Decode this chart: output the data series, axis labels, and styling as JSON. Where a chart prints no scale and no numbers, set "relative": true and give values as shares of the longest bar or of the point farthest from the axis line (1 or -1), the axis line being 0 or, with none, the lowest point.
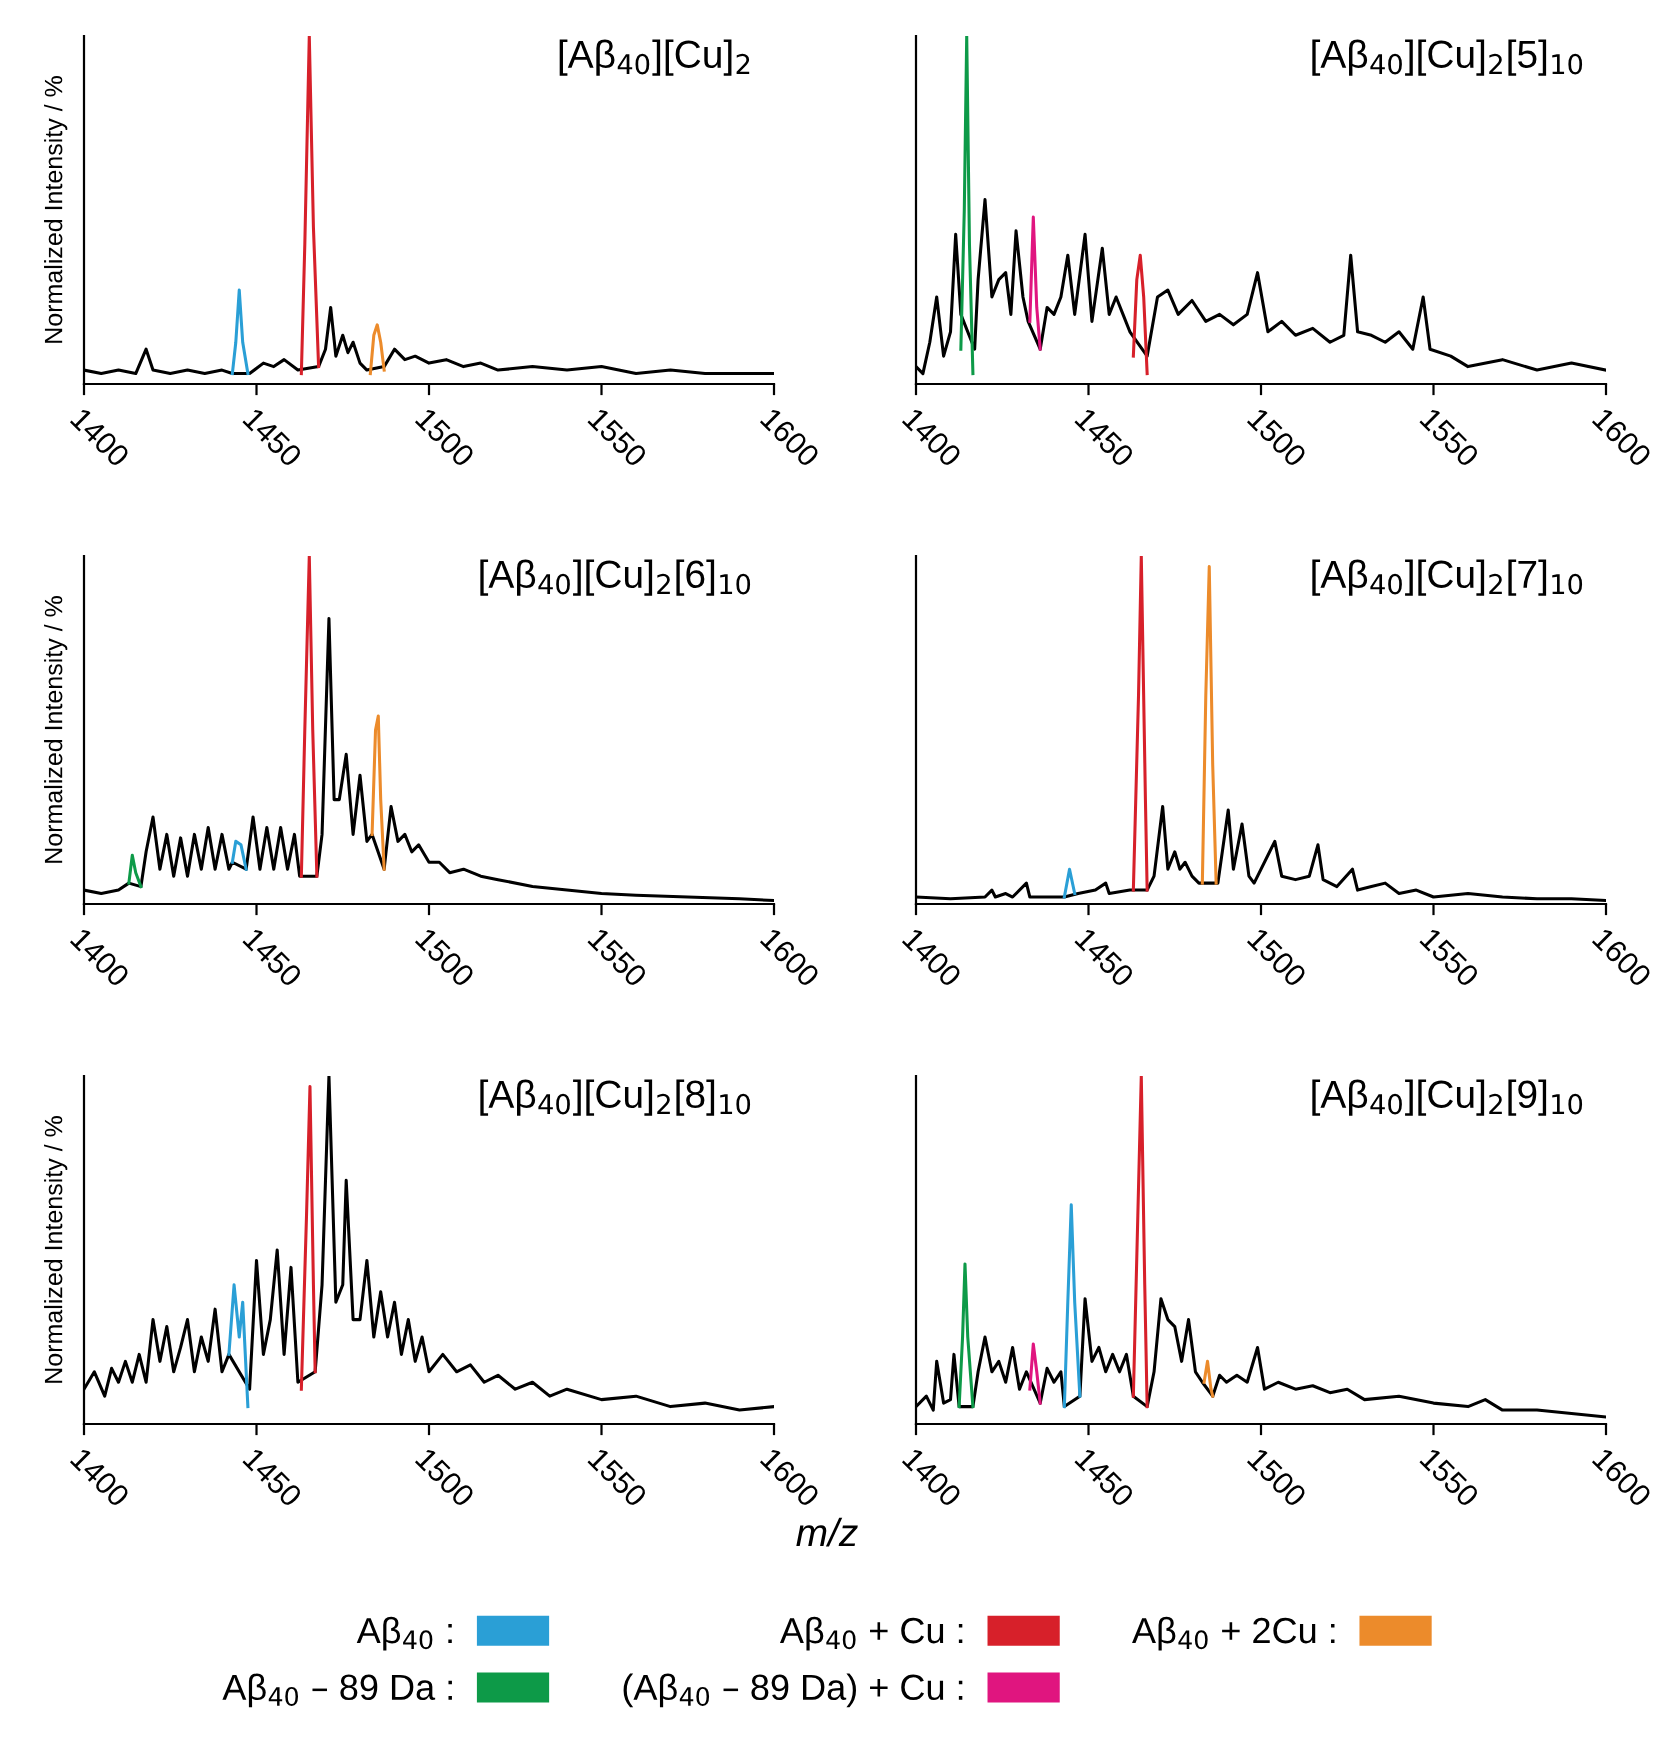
{
  "chart_data": [
    {
      "type": "line",
      "title": "[Aβ$_{40}$][Cu]$_{2}$",
      "ylabel": "Normalized Intensity / %",
      "relative": true,
      "xlim": [
        1400,
        1600
      ],
      "xticks": [
        1400,
        1450,
        1500,
        1550,
        1600
      ],
      "legend": "bottom",
      "series": [
        {
          "color": "#000000",
          "x": [
            1400,
            1405,
            1410,
            1415,
            1418,
            1420,
            1425,
            1430,
            1435,
            1440,
            1443,
            1448,
            1452,
            1455,
            1458,
            1462,
            1468,
            1470,
            1471.5,
            1473,
            1475,
            1476.5,
            1478,
            1480,
            1482,
            1487,
            1490,
            1493,
            1496,
            1500,
            1505,
            1510,
            1515,
            1520,
            1530,
            1540,
            1550,
            1560,
            1570,
            1580,
            1590,
            1600
          ],
          "values": [
            0.04,
            0.03,
            0.04,
            0.03,
            0.1,
            0.04,
            0.03,
            0.04,
            0.03,
            0.04,
            0.03,
            0.03,
            0.06,
            0.05,
            0.07,
            0.04,
            0.05,
            0.1,
            0.22,
            0.08,
            0.14,
            0.09,
            0.12,
            0.06,
            0.04,
            0.05,
            0.1,
            0.07,
            0.08,
            0.06,
            0.07,
            0.05,
            0.06,
            0.04,
            0.05,
            0.04,
            0.05,
            0.03,
            0.04,
            0.03,
            0.03,
            0.03
          ]
        },
        {
          "name": "Aβ$_{40}$ :",
          "color": "#2a9fd6",
          "x": [
            1443,
            1444,
            1445,
            1446,
            1447.5
          ],
          "values": [
            0.03,
            0.12,
            0.27,
            0.12,
            0.03
          ]
        },
        {
          "name": "Aβ$_{40}$ + Cu :",
          "color": "#d7202a",
          "x": [
            1463,
            1464,
            1465.3,
            1466.5,
            1468
          ],
          "values": [
            0.03,
            0.4,
            1.0,
            0.45,
            0.05
          ]
        },
        {
          "name": "Aβ$_{40}$ + 2Cu :",
          "color": "#ec8b2b",
          "x": [
            1483,
            1484,
            1485,
            1486,
            1487
          ],
          "values": [
            0.03,
            0.14,
            0.17,
            0.12,
            0.04
          ]
        }
      ]
    },
    {
      "type": "line",
      "title": "[Aβ$_{40}$][Cu]$_{2}$[5]$_{10}$",
      "relative": true,
      "xlim": [
        1400,
        1600
      ],
      "xticks": [
        1400,
        1450,
        1500,
        1550,
        1600
      ],
      "legend": "bottom",
      "series": [
        {
          "color": "#000000",
          "x": [
            1400,
            1402,
            1404,
            1406,
            1408,
            1410,
            1411.5,
            1413,
            1417,
            1418,
            1420,
            1422,
            1424,
            1426,
            1427.5,
            1429,
            1431,
            1432.5,
            1436,
            1438,
            1440,
            1442,
            1444,
            1446,
            1449,
            1451,
            1454,
            1456,
            1458,
            1460,
            1462,
            1467,
            1470,
            1473,
            1476,
            1480,
            1484,
            1488,
            1492,
            1496,
            1499,
            1502,
            1506,
            1510,
            1515,
            1520,
            1524,
            1526,
            1528,
            1532,
            1536,
            1540,
            1544,
            1547,
            1549,
            1555,
            1560,
            1570,
            1580,
            1590,
            1600
          ],
          "values": [
            0.05,
            0.03,
            0.12,
            0.25,
            0.08,
            0.15,
            0.43,
            0.2,
            0.1,
            0.3,
            0.53,
            0.25,
            0.3,
            0.32,
            0.2,
            0.44,
            0.25,
            0.18,
            0.1,
            0.22,
            0.2,
            0.25,
            0.37,
            0.2,
            0.43,
            0.18,
            0.39,
            0.2,
            0.25,
            0.2,
            0.15,
            0.08,
            0.25,
            0.27,
            0.2,
            0.24,
            0.18,
            0.2,
            0.17,
            0.2,
            0.32,
            0.15,
            0.18,
            0.14,
            0.16,
            0.12,
            0.14,
            0.37,
            0.15,
            0.14,
            0.12,
            0.15,
            0.1,
            0.25,
            0.1,
            0.08,
            0.05,
            0.07,
            0.04,
            0.06,
            0.04
          ]
        },
        {
          "name": "Aβ$_{40}$ – 89 Da :",
          "color": "#0d9a48",
          "x": [
            1413,
            1414,
            1414.7,
            1415.5,
            1416.5
          ],
          "values": [
            0.1,
            0.5,
            1.0,
            0.4,
            0.03
          ]
        },
        {
          "name": "(Aβ$_{40}$ – 89 Da) + Cu :",
          "color": "#e0157f",
          "x": [
            1433,
            1434,
            1435,
            1436
          ],
          "values": [
            0.18,
            0.48,
            0.22,
            0.1
          ]
        },
        {
          "name": "Aβ$_{40}$ + Cu :",
          "color": "#d7202a",
          "x": [
            1463,
            1464,
            1465,
            1466,
            1467
          ],
          "values": [
            0.08,
            0.3,
            0.37,
            0.25,
            0.03
          ]
        }
      ]
    },
    {
      "type": "line",
      "title": "[Aβ$_{40}$][Cu]$_{2}$[6]$_{10}$",
      "ylabel": "Normalized Intensity / %",
      "relative": true,
      "xlim": [
        1400,
        1600
      ],
      "xticks": [
        1400,
        1450,
        1500,
        1550,
        1600
      ],
      "legend": "bottom",
      "series": [
        {
          "color": "#000000",
          "x": [
            1400,
            1405,
            1410,
            1413,
            1416.5,
            1418,
            1420,
            1422,
            1424,
            1426,
            1428,
            1430,
            1432,
            1434,
            1436,
            1438,
            1440,
            1442,
            1443,
            1447,
            1449,
            1451,
            1453,
            1455,
            1457,
            1459,
            1461,
            1462.5,
            1467.5,
            1469,
            1471,
            1472.5,
            1474,
            1476,
            1478,
            1480,
            1482,
            1483.5,
            1487,
            1489,
            1491,
            1493,
            1495,
            1497,
            1500,
            1503,
            1506,
            1510,
            1515,
            1520,
            1530,
            1540,
            1550,
            1560,
            1575,
            1590,
            1600
          ],
          "values": [
            0.04,
            0.03,
            0.04,
            0.06,
            0.05,
            0.15,
            0.25,
            0.1,
            0.2,
            0.08,
            0.19,
            0.08,
            0.2,
            0.1,
            0.22,
            0.1,
            0.2,
            0.1,
            0.12,
            0.1,
            0.25,
            0.1,
            0.22,
            0.1,
            0.22,
            0.1,
            0.2,
            0.08,
            0.08,
            0.2,
            0.82,
            0.3,
            0.3,
            0.43,
            0.2,
            0.37,
            0.18,
            0.2,
            0.1,
            0.28,
            0.18,
            0.2,
            0.15,
            0.17,
            0.12,
            0.12,
            0.09,
            0.1,
            0.08,
            0.07,
            0.05,
            0.04,
            0.03,
            0.025,
            0.02,
            0.015,
            0.01
          ]
        },
        {
          "name": "Aβ$_{40}$ – 89 Da :",
          "color": "#0d9a48",
          "x": [
            1413,
            1414,
            1415,
            1416.5
          ],
          "values": [
            0.06,
            0.14,
            0.09,
            0.05
          ]
        },
        {
          "name": "Aβ$_{40}$ :",
          "color": "#2a9fd6",
          "x": [
            1443,
            1444,
            1445.5,
            1447
          ],
          "values": [
            0.12,
            0.18,
            0.17,
            0.1
          ]
        },
        {
          "name": "Aβ$_{40}$ + Cu :",
          "color": "#d7202a",
          "x": [
            1463,
            1464,
            1465.3,
            1466.3,
            1467.5
          ],
          "values": [
            0.08,
            0.5,
            1.0,
            0.5,
            0.08
          ]
        },
        {
          "name": "Aβ$_{40}$ + 2Cu :",
          "color": "#ec8b2b",
          "x": [
            1483.5,
            1484.5,
            1485.3,
            1486,
            1487
          ],
          "values": [
            0.2,
            0.5,
            0.54,
            0.3,
            0.1
          ]
        }
      ]
    },
    {
      "type": "line",
      "title": "[Aβ$_{40}$][Cu]$_{2}$[7]$_{10}$",
      "relative": true,
      "xlim": [
        1400,
        1600
      ],
      "xticks": [
        1400,
        1450,
        1500,
        1550,
        1600
      ],
      "legend": "bottom",
      "series": [
        {
          "color": "#000000",
          "x": [
            1400,
            1410,
            1420,
            1422,
            1423,
            1426,
            1428,
            1432,
            1433,
            1440,
            1443,
            1447,
            1452,
            1455,
            1456,
            1462,
            1463,
            1467,
            1469,
            1471.5,
            1473,
            1475,
            1476.5,
            1478,
            1480,
            1482,
            1483,
            1487.5,
            1490.5,
            1492,
            1494.5,
            1496.5,
            1498,
            1504,
            1506,
            1510,
            1514,
            1516.5,
            1518,
            1522,
            1526.5,
            1528,
            1532,
            1536,
            1540,
            1545,
            1550,
            1560,
            1570,
            1580,
            1590,
            1600
          ],
          "values": [
            0.02,
            0.015,
            0.02,
            0.04,
            0.02,
            0.03,
            0.02,
            0.06,
            0.02,
            0.02,
            0.02,
            0.03,
            0.04,
            0.06,
            0.03,
            0.04,
            0.04,
            0.04,
            0.08,
            0.28,
            0.1,
            0.15,
            0.1,
            0.12,
            0.08,
            0.06,
            0.06,
            0.06,
            0.27,
            0.1,
            0.23,
            0.08,
            0.06,
            0.18,
            0.08,
            0.07,
            0.08,
            0.17,
            0.07,
            0.05,
            0.1,
            0.04,
            0.05,
            0.06,
            0.03,
            0.04,
            0.02,
            0.03,
            0.02,
            0.015,
            0.015,
            0.01
          ]
        },
        {
          "name": "Aβ$_{40}$ :",
          "color": "#2a9fd6",
          "x": [
            1443,
            1444.5,
            1446
          ],
          "values": [
            0.02,
            0.1,
            0.03
          ]
        },
        {
          "name": "Aβ$_{40}$ + Cu :",
          "color": "#d7202a",
          "x": [
            1463,
            1464.5,
            1465.3,
            1466.5,
            1467
          ],
          "values": [
            0.04,
            0.6,
            1.0,
            0.3,
            0.04
          ]
        },
        {
          "name": "Aβ$_{40}$ + 2Cu :",
          "color": "#ec8b2b",
          "x": [
            1483,
            1484,
            1485,
            1486,
            1487
          ],
          "values": [
            0.06,
            0.6,
            0.97,
            0.4,
            0.06
          ]
        }
      ]
    },
    {
      "type": "line",
      "title": "[Aβ$_{40}$][Cu]$_{2}$[8]$_{10}$",
      "ylabel": "Normalized Intensity / %",
      "xlabel": "m/z",
      "relative": true,
      "xlim": [
        1400,
        1600
      ],
      "xticks": [
        1400,
        1450,
        1500,
        1550,
        1600
      ],
      "legend": "bottom",
      "series": [
        {
          "color": "#000000",
          "x": [
            1400,
            1403,
            1406,
            1408,
            1410,
            1412,
            1414,
            1416,
            1418,
            1420,
            1422,
            1424,
            1426,
            1428,
            1430,
            1432,
            1434,
            1436,
            1438,
            1440,
            1442,
            1448,
            1450,
            1452,
            1454,
            1456,
            1458,
            1460,
            1462,
            1467,
            1469,
            1471,
            1473,
            1475,
            1476,
            1478,
            1480,
            1482,
            1484,
            1486,
            1488,
            1490,
            1492,
            1494,
            1496,
            1498,
            1500,
            1504,
            1508,
            1512,
            1516,
            1520,
            1525,
            1530,
            1535,
            1540,
            1550,
            1560,
            1570,
            1580,
            1590,
            1600
          ],
          "values": [
            0.1,
            0.15,
            0.08,
            0.16,
            0.12,
            0.18,
            0.12,
            0.2,
            0.12,
            0.3,
            0.18,
            0.28,
            0.15,
            0.22,
            0.3,
            0.15,
            0.25,
            0.18,
            0.33,
            0.15,
            0.2,
            0.1,
            0.47,
            0.2,
            0.3,
            0.5,
            0.2,
            0.45,
            0.12,
            0.15,
            0.4,
            1.0,
            0.35,
            0.4,
            0.7,
            0.3,
            0.3,
            0.47,
            0.25,
            0.38,
            0.25,
            0.35,
            0.2,
            0.3,
            0.18,
            0.25,
            0.15,
            0.2,
            0.15,
            0.17,
            0.12,
            0.14,
            0.1,
            0.12,
            0.08,
            0.1,
            0.07,
            0.08,
            0.05,
            0.06,
            0.04,
            0.05
          ]
        },
        {
          "name": "Aβ$_{40}$ :",
          "color": "#2a9fd6",
          "x": [
            1442,
            1443.5,
            1445,
            1446,
            1447.5
          ],
          "values": [
            0.2,
            0.4,
            0.25,
            0.35,
            0.05
          ]
        },
        {
          "name": "Aβ$_{40}$ + Cu :",
          "color": "#d7202a",
          "x": [
            1463,
            1464.5,
            1465.5,
            1466.5,
            1467
          ],
          "values": [
            0.1,
            0.6,
            0.97,
            0.4,
            0.15
          ]
        }
      ]
    },
    {
      "type": "line",
      "title": "[Aβ$_{40}$][Cu]$_{2}$[9]$_{10}$",
      "relative": true,
      "xlim": [
        1400,
        1600
      ],
      "xticks": [
        1400,
        1450,
        1500,
        1550,
        1600
      ],
      "legend": "bottom",
      "series": [
        {
          "color": "#000000",
          "x": [
            1400,
            1403,
            1405,
            1406,
            1408,
            1410,
            1411,
            1412.5,
            1416.5,
            1418,
            1420,
            1422,
            1424,
            1426,
            1428,
            1430,
            1432,
            1436,
            1438,
            1440,
            1442,
            1443,
            1447.5,
            1449,
            1451,
            1453,
            1455,
            1457,
            1459,
            1461,
            1463,
            1467,
            1469,
            1471,
            1473,
            1475,
            1477,
            1479,
            1481,
            1483,
            1486,
            1488,
            1490,
            1493,
            1496,
            1499,
            1501,
            1505,
            1510,
            1515,
            1520,
            1525,
            1530,
            1540,
            1550,
            1560,
            1565,
            1570,
            1580,
            1590,
            1600
          ],
          "values": [
            0.05,
            0.08,
            0.04,
            0.18,
            0.06,
            0.07,
            0.2,
            0.05,
            0.05,
            0.15,
            0.25,
            0.15,
            0.18,
            0.12,
            0.22,
            0.1,
            0.15,
            0.06,
            0.16,
            0.12,
            0.15,
            0.05,
            0.08,
            0.36,
            0.18,
            0.22,
            0.15,
            0.2,
            0.15,
            0.2,
            0.08,
            0.05,
            0.15,
            0.36,
            0.3,
            0.28,
            0.18,
            0.3,
            0.15,
            0.12,
            0.08,
            0.14,
            0.12,
            0.14,
            0.12,
            0.22,
            0.1,
            0.12,
            0.1,
            0.11,
            0.09,
            0.1,
            0.07,
            0.08,
            0.06,
            0.05,
            0.07,
            0.04,
            0.04,
            0.03,
            0.02
          ]
        },
        {
          "name": "Aβ$_{40}$ – 89 Da :",
          "color": "#0d9a48",
          "x": [
            1412.5,
            1413.5,
            1414.2,
            1415,
            1416.5
          ],
          "values": [
            0.05,
            0.25,
            0.46,
            0.25,
            0.05
          ]
        },
        {
          "name": "(Aβ$_{40}$ – 89 Da) + Cu :",
          "color": "#e0157f",
          "x": [
            1433,
            1434,
            1435,
            1436
          ],
          "values": [
            0.1,
            0.23,
            0.15,
            0.06
          ]
        },
        {
          "name": "Aβ$_{40}$ :",
          "color": "#2a9fd6",
          "x": [
            1443,
            1444,
            1445,
            1446,
            1447.5
          ],
          "values": [
            0.05,
            0.35,
            0.63,
            0.35,
            0.08
          ]
        },
        {
          "name": "Aβ$_{40}$ + Cu :",
          "color": "#d7202a",
          "x": [
            1463,
            1464.3,
            1465.3,
            1466.3,
            1467
          ],
          "values": [
            0.08,
            0.6,
            1.0,
            0.4,
            0.05
          ]
        },
        {
          "name": "Aβ$_{40}$ + 2Cu :",
          "color": "#ec8b2b",
          "x": [
            1483.5,
            1484.5,
            1485.5,
            1486
          ],
          "values": [
            0.12,
            0.18,
            0.1,
            0.08
          ]
        }
      ]
    }
  ]
}
